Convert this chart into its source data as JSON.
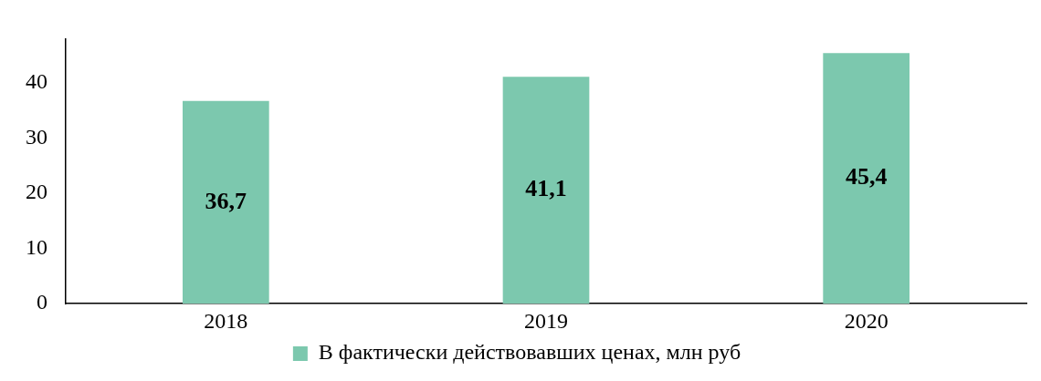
{
  "chart_data": {
    "type": "bar",
    "categories": [
      "2018",
      "2019",
      "2020"
    ],
    "series": [
      {
        "name": "В фактически действовавших ценах, млн руб",
        "color": "#7cc8ae",
        "values": [
          36.7,
          41.1,
          45.4
        ],
        "value_labels": [
          "36,7",
          "41,1",
          "45,4"
        ]
      }
    ],
    "ylim": [
      0,
      48
    ],
    "yticks": [
      0,
      10,
      20,
      30,
      40
    ],
    "grid": false,
    "legend": "bottom"
  }
}
